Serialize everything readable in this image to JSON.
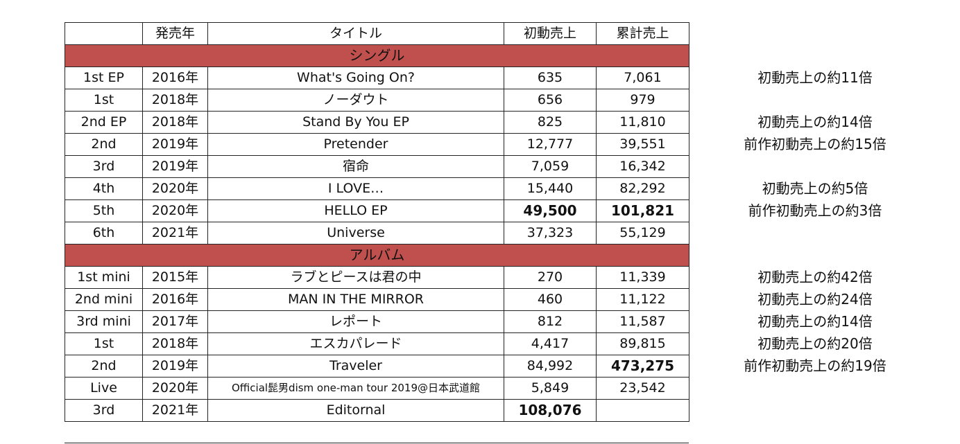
{
  "header": {
    "col1": "",
    "col2": "発売年",
    "col3": "タイトル",
    "col4": "初動売上",
    "col5": "累計売上"
  },
  "sections": {
    "singles": "シングル",
    "albums": "アルバム"
  },
  "singles": [
    {
      "type": "1st EP",
      "year": "2016年",
      "title": "What's Going On?",
      "first": "635",
      "total": "7,061",
      "note": "初動売上の約11倍"
    },
    {
      "type": "1st",
      "year": "2018年",
      "title": "ノーダウト",
      "first": "656",
      "total": "979",
      "note": ""
    },
    {
      "type": "2nd EP",
      "year": "2018年",
      "title": "Stand By You EP",
      "first": "825",
      "total": "11,810",
      "note": "初動売上の約14倍"
    },
    {
      "type": "2nd",
      "year": "2019年",
      "title": "Pretender",
      "first": "12,777",
      "total": "39,551",
      "note": "前作初動売上の約15倍"
    },
    {
      "type": "3rd",
      "year": "2019年",
      "title": "宿命",
      "first": "7,059",
      "total": "16,342",
      "note": ""
    },
    {
      "type": "4th",
      "year": "2020年",
      "title": "I LOVE…",
      "first": "15,440",
      "total": "82,292",
      "note": "初動売上の約5倍"
    },
    {
      "type": "5th",
      "year": "2020年",
      "title": "HELLO EP",
      "first": "49,500",
      "total": "101,821",
      "note": "前作初動売上の約3倍"
    },
    {
      "type": "6th",
      "year": "2021年",
      "title": "Universe",
      "first": "37,323",
      "total": "55,129",
      "note": ""
    }
  ],
  "albums": [
    {
      "type": "1st mini",
      "year": "2015年",
      "title": "ラブとピースは君の中",
      "first": "270",
      "total": "11,339",
      "note": "初動売上の約42倍"
    },
    {
      "type": "2nd mini",
      "year": "2016年",
      "title": "MAN IN THE MIRROR",
      "first": "460",
      "total": "11,122",
      "note": "初動売上の約24倍"
    },
    {
      "type": "3rd mini",
      "year": "2017年",
      "title": "レポート",
      "first": "812",
      "total": "11,587",
      "note": "初動売上の約14倍"
    },
    {
      "type": "1st",
      "year": "2018年",
      "title": "エスカパレード",
      "first": "4,417",
      "total": "89,815",
      "note": "初動売上の約20倍"
    },
    {
      "type": "2nd",
      "year": "2019年",
      "title": "Traveler",
      "first": "84,992",
      "total": "473,275",
      "note": "前作初動売上の約19倍"
    },
    {
      "type": "Live",
      "year": "2020年",
      "title": "Official髭男dism one-man tour 2019@日本武道館",
      "first": "5,849",
      "total": "23,542",
      "note": ""
    },
    {
      "type": "3rd",
      "year": "2021年",
      "title": "Editornal",
      "first": "108,076",
      "total": "",
      "note": ""
    }
  ],
  "colors": {
    "section_bg": "#c0504d",
    "border": "#222222"
  }
}
